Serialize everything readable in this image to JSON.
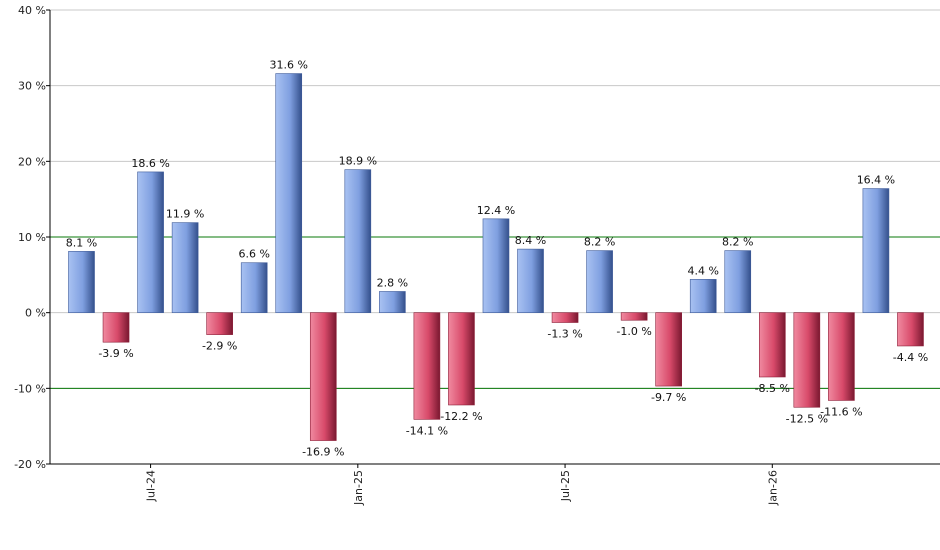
{
  "chart_data": {
    "type": "bar",
    "value_suffix": " %",
    "values": [
      8.1,
      -3.9,
      18.6,
      11.9,
      -2.9,
      6.6,
      31.6,
      -16.9,
      18.9,
      2.8,
      -14.1,
      -12.2,
      12.4,
      8.4,
      -1.3,
      8.2,
      -1.0,
      -9.7,
      4.4,
      8.2,
      -8.5,
      -12.5,
      -11.6,
      16.4,
      -4.4
    ],
    "data_labels": [
      "8.1 %",
      "-3.9 %",
      "18.6 %",
      "11.9 %",
      "-2.9 %",
      "6.6 %",
      "31.6 %",
      "-16.9 %",
      "18.9 %",
      "2.8 %",
      "-14.1 %",
      "-12.2 %",
      "12.4 %",
      "8.4 %",
      "-1.3 %",
      "8.2 %",
      "-1.0 %",
      "-9.7 %",
      "4.4 %",
      "8.2 %",
      "-8.5 %",
      "-12.5 %",
      "-11.6 %",
      "16.4 %",
      "-4.4 %"
    ],
    "x_ticks": [
      {
        "label": "Jul-24",
        "index": 2
      },
      {
        "label": "Jan-25",
        "index": 8
      },
      {
        "label": "Jul-25",
        "index": 14
      },
      {
        "label": "Jan-26",
        "index": 20
      }
    ],
    "y_ticks": [
      40,
      30,
      20,
      10,
      0,
      -10,
      -20
    ],
    "y_tick_labels": [
      "40 %",
      "30 %",
      "20 %",
      "10 %",
      "0 %",
      "-10 %",
      "-20 %"
    ],
    "ylim": [
      -20,
      40
    ],
    "reference_lines": [
      10,
      -10
    ],
    "grid": true,
    "colors": {
      "positive": "#7f9fe0",
      "positive_dark": "#3d5a99",
      "negative": "#d84a6a",
      "negative_dark": "#8c1c36",
      "reference_line": "#0a7a0a",
      "grid": "#c8c8c8",
      "axis": "#000000"
    }
  }
}
